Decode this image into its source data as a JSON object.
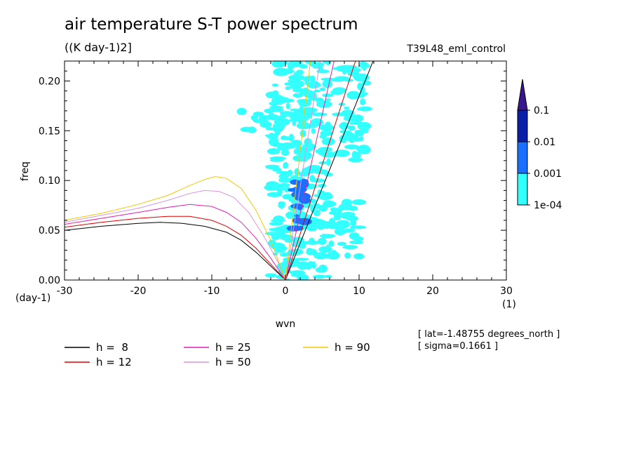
{
  "header": {
    "title": "air temperature S-T power spectrum",
    "units": "((K day-1)2]",
    "run_id": "T39L48_eml_control"
  },
  "info": {
    "lat": "[ lat=-1.48755 degrees_north ]",
    "sigma": "[ sigma=0.1661 ]"
  },
  "chart_data": {
    "type": "heatmap",
    "title": "air temperature S-T power spectrum",
    "xlabel": "wvn",
    "ylabel": "freq",
    "x_unit_label": "(1)",
    "y_unit_label": "(day-1)",
    "xlim": [
      -30,
      30
    ],
    "ylim": [
      0,
      0.22
    ],
    "x_ticks": [
      -30,
      -20,
      -10,
      0,
      10,
      20,
      30
    ],
    "x_tick_labels": [
      "-30",
      "-20",
      "-10",
      "0",
      "10",
      "20",
      "30"
    ],
    "y_ticks": [
      0.0,
      0.05,
      0.1,
      0.15,
      0.2
    ],
    "y_tick_labels": [
      "0.00",
      "0.05",
      "0.10",
      "0.15",
      "0.20"
    ],
    "colorbar": {
      "levels": [
        "1e-04",
        "0.001",
        "0.01",
        "0.1"
      ],
      "colors": [
        "#33ffff",
        "#1a6fff",
        "#0a1fa8",
        "#3a1590"
      ]
    },
    "heatmap_regions": [
      {
        "level": 0,
        "x": [
          -2,
          6
        ],
        "y": [
          0.0,
          0.22
        ],
        "note": "main band"
      },
      {
        "level": 0,
        "x": [
          -6,
          -2
        ],
        "y": [
          0.15,
          0.17
        ]
      },
      {
        "level": 0,
        "x": [
          6,
          10
        ],
        "y": [
          0.02,
          0.08
        ]
      },
      {
        "level": 0,
        "x": [
          7,
          11
        ],
        "y": [
          0.12,
          0.22
        ]
      },
      {
        "level": 1,
        "x": [
          1,
          3
        ],
        "y": [
          0.05,
          0.1
        ]
      }
    ],
    "dispersion_curves": [
      {
        "name": "h =  8",
        "color": "#000000",
        "westward": [
          [
            -30,
            0.05
          ],
          [
            -25,
            0.054
          ],
          [
            -20,
            0.057
          ],
          [
            -17,
            0.058
          ],
          [
            -14,
            0.057
          ],
          [
            -11,
            0.054
          ],
          [
            -8,
            0.048
          ],
          [
            -6,
            0.04
          ],
          [
            -4,
            0.028
          ],
          [
            -2,
            0.014
          ],
          [
            0,
            0.0
          ]
        ],
        "eastward": [
          [
            0,
            0.0
          ],
          [
            11.9,
            0.22
          ]
        ]
      },
      {
        "name": "h = 12",
        "color": "#e00000",
        "westward": [
          [
            -30,
            0.053
          ],
          [
            -25,
            0.058
          ],
          [
            -20,
            0.062
          ],
          [
            -16,
            0.064
          ],
          [
            -13,
            0.064
          ],
          [
            -10,
            0.06
          ],
          [
            -8,
            0.054
          ],
          [
            -6,
            0.045
          ],
          [
            -4,
            0.032
          ],
          [
            -2,
            0.016
          ],
          [
            0,
            0.0
          ]
        ],
        "eastward": [
          [
            0,
            0.0
          ],
          [
            9.5,
            0.22
          ]
        ]
      },
      {
        "name": "h = 25",
        "color": "#e020b0",
        "westward": [
          [
            -30,
            0.056
          ],
          [
            -25,
            0.062
          ],
          [
            -20,
            0.068
          ],
          [
            -16,
            0.073
          ],
          [
            -13,
            0.076
          ],
          [
            -10,
            0.074
          ],
          [
            -8,
            0.068
          ],
          [
            -6,
            0.058
          ],
          [
            -4,
            0.042
          ],
          [
            -2,
            0.022
          ],
          [
            0,
            0.0
          ]
        ],
        "eastward": [
          [
            0,
            0.0
          ],
          [
            6.6,
            0.22
          ]
        ]
      },
      {
        "name": "h = 50",
        "color": "#dc96dc",
        "westward": [
          [
            -30,
            0.058
          ],
          [
            -25,
            0.065
          ],
          [
            -20,
            0.072
          ],
          [
            -16,
            0.08
          ],
          [
            -13,
            0.087
          ],
          [
            -11,
            0.09
          ],
          [
            -9,
            0.089
          ],
          [
            -7,
            0.083
          ],
          [
            -5,
            0.068
          ],
          [
            -3,
            0.045
          ],
          [
            -1,
            0.018
          ],
          [
            0,
            0.0
          ]
        ],
        "eastward": [
          [
            0,
            0.0
          ],
          [
            4.7,
            0.22
          ]
        ]
      },
      {
        "name": "h = 90",
        "color": "#f0c800",
        "westward": [
          [
            -30,
            0.06
          ],
          [
            -25,
            0.067
          ],
          [
            -20,
            0.076
          ],
          [
            -16,
            0.085
          ],
          [
            -13,
            0.095
          ],
          [
            -11,
            0.101
          ],
          [
            -9.5,
            0.104
          ],
          [
            -8,
            0.102
          ],
          [
            -6,
            0.092
          ],
          [
            -4,
            0.07
          ],
          [
            -2,
            0.04
          ],
          [
            0,
            0.0
          ]
        ],
        "eastward": [
          [
            0,
            0.0
          ],
          [
            3.4,
            0.22
          ]
        ]
      }
    ],
    "legend": [
      "h =  8",
      "h = 12",
      "h = 25",
      "h = 50",
      "h = 90"
    ]
  }
}
